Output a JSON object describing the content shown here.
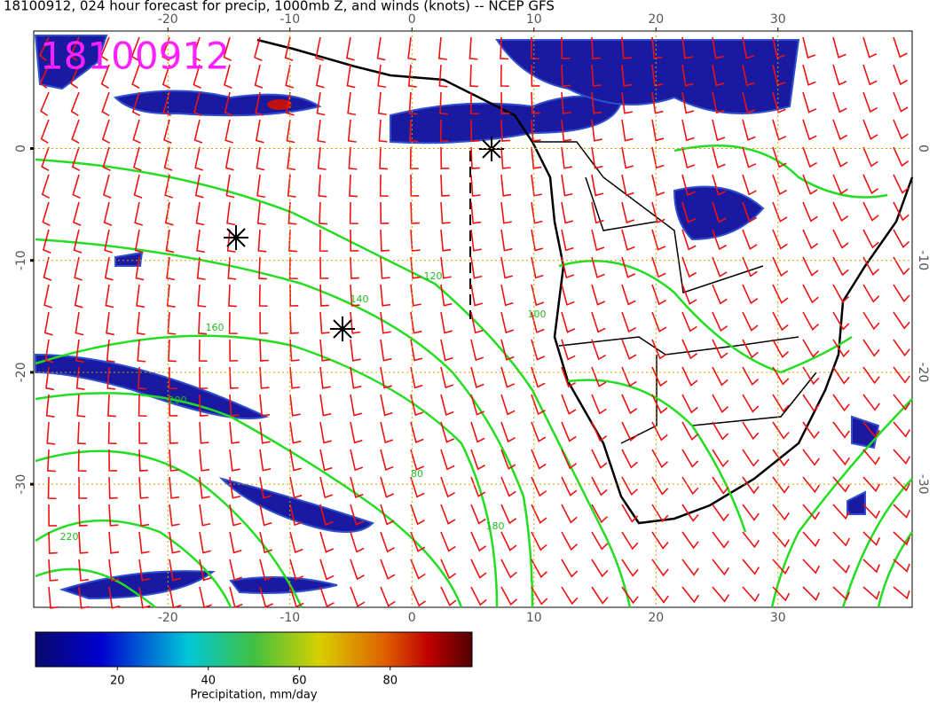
{
  "title": "18100912, 024 hour forecast for precip, 1000mb Z, and winds (knots) -- NCEP GFS",
  "stamp": "18100912",
  "map": {
    "lonlim": [
      -31,
      41
    ],
    "latlim": [
      10.5,
      -41
    ],
    "lonticks": [
      -20,
      -10,
      0,
      10,
      20,
      30
    ],
    "latticks": [
      0,
      -10,
      -20,
      -30
    ],
    "contour_labels": [
      160,
      140,
      120,
      100,
      80,
      200,
      220,
      180
    ]
  },
  "colorbar": {
    "range": [
      2,
      98
    ],
    "ticks": [
      20,
      40,
      60,
      80
    ],
    "label": "Precipitation, mm/day"
  }
}
